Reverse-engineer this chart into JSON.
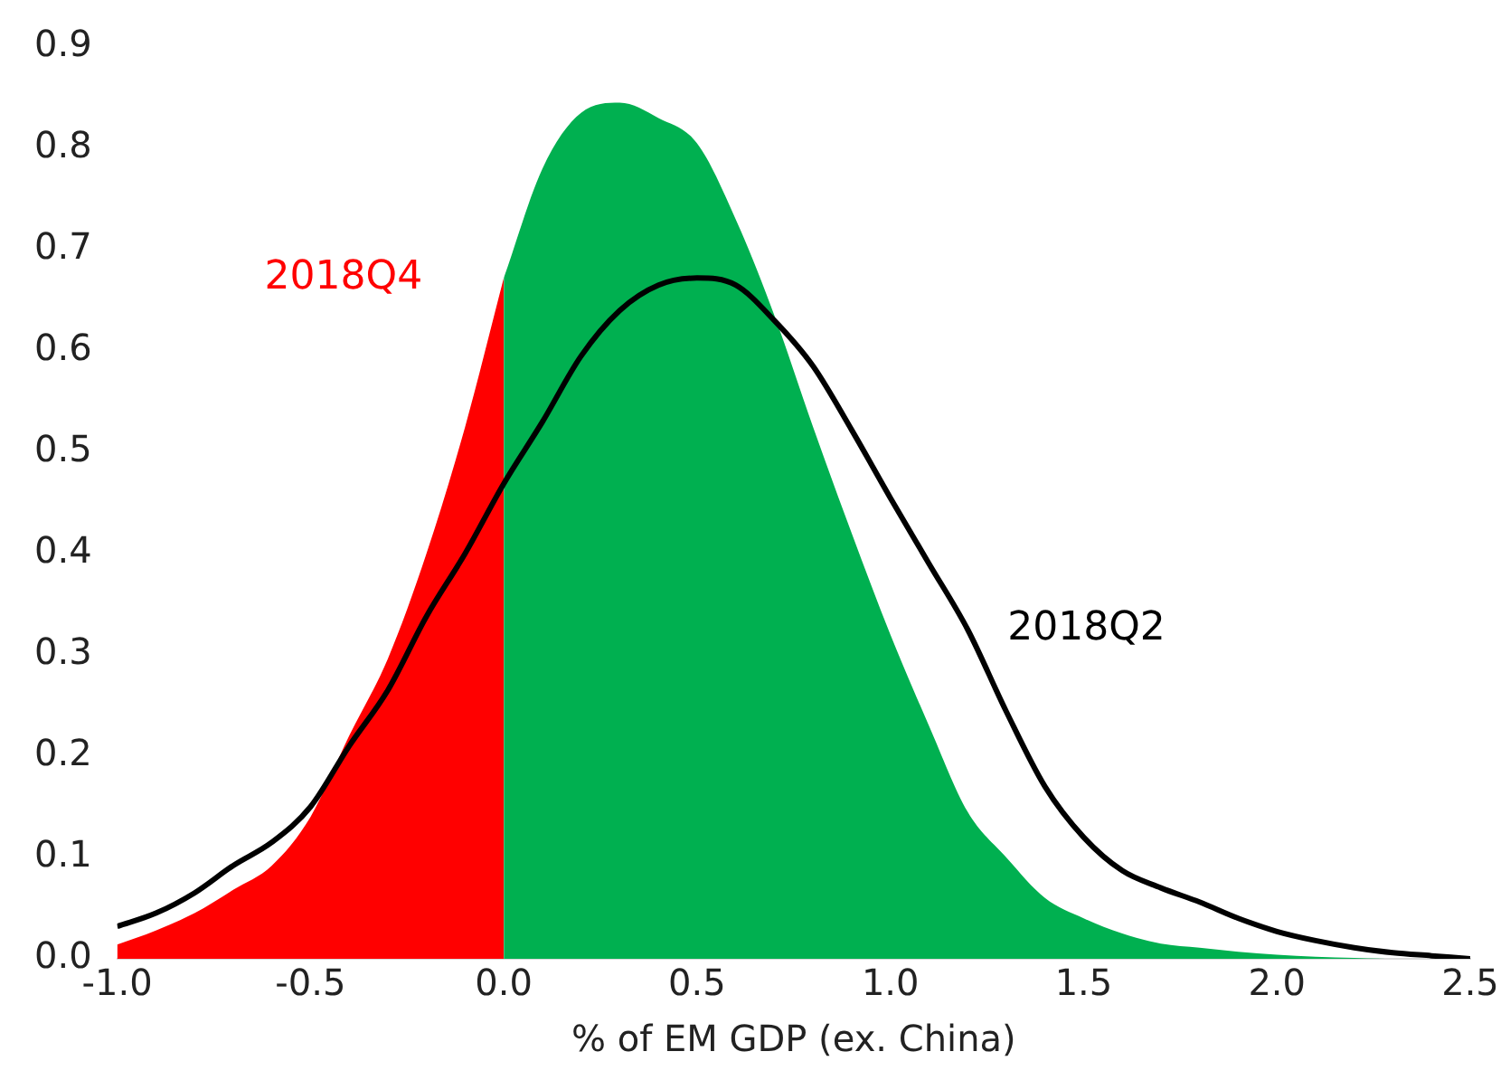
{
  "chart_data": {
    "type": "area",
    "xlabel": "% of EM GDP (ex. China)",
    "xlim": [
      -1.0,
      2.5
    ],
    "xticks": [
      {
        "value": -1,
        "label": "-1.0"
      },
      {
        "value": -0.5,
        "label": "-0.5"
      },
      {
        "value": 0,
        "label": "0.0"
      },
      {
        "value": 0.5,
        "label": "0.5"
      },
      {
        "value": 1,
        "label": "1.0"
      },
      {
        "value": 1.5,
        "label": "1.5"
      },
      {
        "value": 2,
        "label": "2.0"
      },
      {
        "value": 2.5,
        "label": "2.5"
      }
    ],
    "ylim": [
      0,
      0.9
    ],
    "yticks": [
      {
        "value": 0,
        "label": "0.0"
      },
      0.1,
      0.2,
      0.3,
      0.4,
      0.5,
      0.6,
      0.7,
      0.8,
      0.9
    ],
    "grid": false,
    "legend": false,
    "series": [
      {
        "name": "2018Q4",
        "color": "#ff0000",
        "x": [
          -1.0,
          -0.9,
          -0.8,
          -0.7,
          -0.6,
          -0.5,
          -0.4,
          -0.3,
          -0.2,
          -0.1,
          0.0
        ],
        "values": [
          0.014,
          0.028,
          0.045,
          0.068,
          0.092,
          0.14,
          0.22,
          0.296,
          0.4,
          0.525,
          0.672
        ]
      },
      {
        "color": "#00b050",
        "x": [
          0.0,
          0.1,
          0.2,
          0.3,
          0.4,
          0.5,
          0.6,
          0.7,
          0.8,
          0.9,
          1.0,
          1.1,
          1.2,
          1.3,
          1.4,
          1.5,
          1.6,
          1.7,
          1.8,
          1.9,
          2.0,
          2.1,
          2.2,
          2.3,
          2.4,
          2.5
        ],
        "values": [
          0.672,
          0.78,
          0.835,
          0.845,
          0.83,
          0.805,
          0.73,
          0.635,
          0.525,
          0.42,
          0.32,
          0.23,
          0.145,
          0.1,
          0.06,
          0.04,
          0.025,
          0.015,
          0.011,
          0.007,
          0.004,
          0.002,
          0.001,
          0.0,
          0.0,
          0.0
        ]
      },
      {
        "type": "line",
        "name": "2018Q2",
        "color": "#000000",
        "x": [
          -1.0,
          -0.9,
          -0.8,
          -0.7,
          -0.6,
          -0.5,
          -0.4,
          -0.3,
          -0.2,
          -0.1,
          0.0,
          0.1,
          0.2,
          0.3,
          0.4,
          0.5,
          0.6,
          0.7,
          0.8,
          0.9,
          1.0,
          1.1,
          1.2,
          1.3,
          1.4,
          1.5,
          1.6,
          1.7,
          1.8,
          1.9,
          2.0,
          2.1,
          2.2,
          2.3,
          2.4,
          2.5
        ],
        "values": [
          0.032,
          0.045,
          0.065,
          0.092,
          0.115,
          0.15,
          0.21,
          0.265,
          0.338,
          0.4,
          0.469,
          0.53,
          0.595,
          0.64,
          0.665,
          0.672,
          0.665,
          0.63,
          0.585,
          0.522,
          0.455,
          0.39,
          0.325,
          0.244,
          0.17,
          0.12,
          0.087,
          0.07,
          0.056,
          0.04,
          0.027,
          0.018,
          0.011,
          0.006,
          0.003,
          0.0
        ]
      }
    ],
    "marker": "none"
  }
}
